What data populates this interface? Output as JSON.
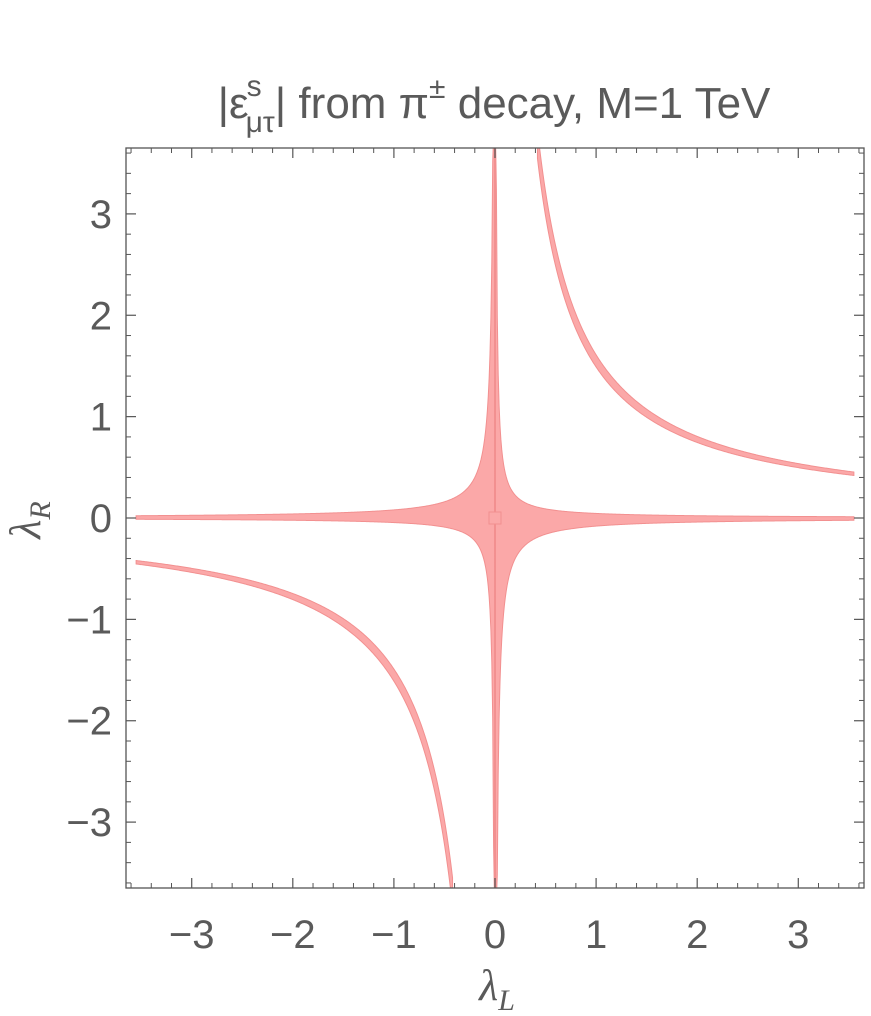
{
  "chart_data": {
    "type": "area",
    "title": {
      "prefix": "|ε",
      "sup": "s",
      "sub": "μτ",
      "middle": "| from π",
      "sup2": "±",
      "suffix": " decay, M=1 TeV"
    },
    "xlabel": {
      "base": "λ",
      "sub": "L"
    },
    "ylabel": {
      "base": "λ",
      "sub": "R"
    },
    "xlim": [
      -3.65,
      3.65
    ],
    "ylim": [
      -3.65,
      3.65
    ],
    "xticks": [
      {
        "v": -3,
        "label": "−3"
      },
      {
        "v": -2,
        "label": "−2"
      },
      {
        "v": -1,
        "label": "−1"
      },
      {
        "v": 0,
        "label": "0"
      },
      {
        "v": 1,
        "label": "1"
      },
      {
        "v": 2,
        "label": "2"
      },
      {
        "v": 3,
        "label": "3"
      }
    ],
    "yticks": [
      {
        "v": -3,
        "label": "−3"
      },
      {
        "v": -2,
        "label": "−2"
      },
      {
        "v": -1,
        "label": "−1"
      },
      {
        "v": 0,
        "label": "0"
      },
      {
        "v": 1,
        "label": "1"
      },
      {
        "v": 2,
        "label": "2"
      },
      {
        "v": 3,
        "label": "3"
      }
    ],
    "grid": false,
    "fill_color": "#fba8a8",
    "edge_color": "#f29090",
    "axis_color": "#555555",
    "text_color": "#5a5a5a",
    "regions": [
      {
        "shape": "cross",
        "product_bounds": [
          -0.08,
          0.045
        ],
        "x_range": [
          -3.55,
          3.55
        ]
      },
      {
        "shape": "hyperbola-quadrant-I",
        "product_bounds": [
          1.49,
          1.61
        ],
        "x_range": [
          0.42,
          3.55
        ]
      },
      {
        "shape": "hyperbola-quadrant-III",
        "product_bounds": [
          1.49,
          1.61
        ],
        "x_range": [
          -3.55,
          -0.42
        ]
      }
    ]
  }
}
